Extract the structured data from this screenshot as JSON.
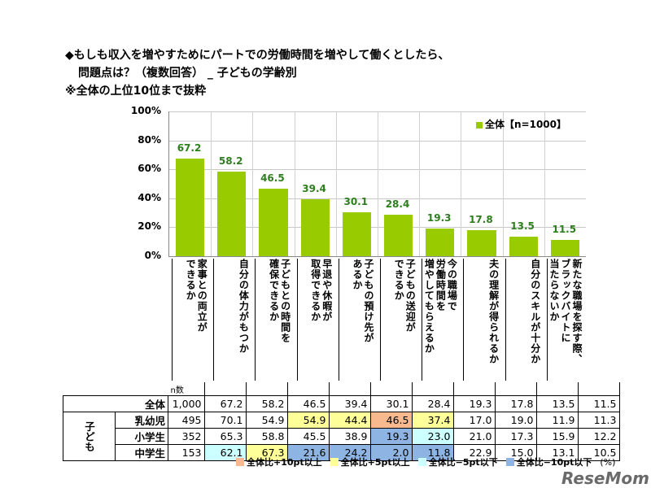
{
  "title_line1": "◆もしも収入を増やすためにパートでの労働時間を増やして働くとしたら、",
  "title_line2": "問題点は？（複数回答） _ 子どもの学齢別",
  "subtitle": "※全体の上位10位まで抜粋",
  "watermark": "ReseMom",
  "colors": {
    "bar": "#99cc00",
    "value_label": "#2e7d1e",
    "plus10": "#f8b98e",
    "plus5": "#ffff99",
    "minus5": "#ccffff",
    "minus10": "#8db4e2"
  },
  "chart_data": {
    "type": "bar",
    "legend": {
      "label": "全体【n=1000】",
      "placement": "top-right"
    },
    "ylim": [
      0,
      100
    ],
    "yticks": [
      "0%",
      "20%",
      "40%",
      "60%",
      "80%",
      "100%"
    ],
    "grid": true,
    "categories": [
      "家事との両立が\nできるか",
      "自分の体力がもつか",
      "子どもとの時間を\n確保できるか",
      "早退や休暇が\n取得できるか",
      "子どもの預け先が\nあるか",
      "子どもの送迎が\nできるか",
      "今の職場で\n労働時間を\n増やしてもらえるか",
      "夫の理解が得られるか",
      "自分のスキルが十分か",
      "新たな職場を探す際、\nブラックバイトに\n当たらないか"
    ],
    "values": [
      67.2,
      58.2,
      46.5,
      39.4,
      30.1,
      28.4,
      19.3,
      17.8,
      13.5,
      11.5
    ]
  },
  "table": {
    "n_header": "n数",
    "group_label": "子ども",
    "rows": [
      {
        "label": "全体",
        "n": "1,000",
        "values": [
          "67.2",
          "58.2",
          "46.5",
          "39.4",
          "30.1",
          "28.4",
          "19.3",
          "17.8",
          "13.5",
          "11.5"
        ],
        "hl": [
          "",
          "",
          "",
          "",
          "",
          "",
          "",
          "",
          "",
          ""
        ]
      },
      {
        "label": "乳幼児",
        "n": "495",
        "values": [
          "70.1",
          "54.9",
          "54.9",
          "44.4",
          "46.5",
          "37.4",
          "17.0",
          "19.0",
          "11.9",
          "11.3"
        ],
        "hl": [
          "",
          "",
          "plus5",
          "plus5",
          "plus10",
          "plus5",
          "",
          "",
          "",
          ""
        ]
      },
      {
        "label": "小学生",
        "n": "352",
        "values": [
          "65.3",
          "58.8",
          "45.5",
          "38.9",
          "19.3",
          "23.0",
          "21.0",
          "17.3",
          "15.9",
          "12.2"
        ],
        "hl": [
          "",
          "",
          "",
          "",
          "minus10",
          "minus5",
          "",
          "",
          "",
          ""
        ]
      },
      {
        "label": "中学生",
        "n": "153",
        "values": [
          "62.1",
          "67.3",
          "21.6",
          "24.2",
          "2.0",
          "11.8",
          "22.9",
          "15.0",
          "13.1",
          "10.5"
        ],
        "hl": [
          "minus5",
          "plus5",
          "minus10",
          "minus10",
          "minus10",
          "minus10",
          "",
          "",
          "",
          ""
        ]
      }
    ]
  },
  "legend_table": [
    {
      "key": "plus10",
      "label": "全体比+10pt以上"
    },
    {
      "key": "plus5",
      "label": "全体比+5pt以上"
    },
    {
      "key": "minus5",
      "label": "全体比−5pt以下"
    },
    {
      "key": "minus10",
      "label": "全体比−10pt以下"
    }
  ],
  "unit": "(%)"
}
